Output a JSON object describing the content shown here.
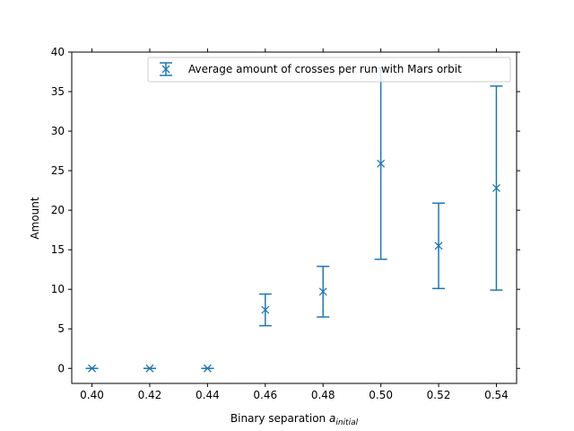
{
  "chart_data": {
    "type": "scatter",
    "title": "",
    "xlabel_main": "Binary separation ",
    "xlabel_var": "a",
    "xlabel_sub": "initial",
    "ylabel": "Amount",
    "xlim": [
      0.393,
      0.547
    ],
    "ylim": [
      -1.9,
      40
    ],
    "xticks": [
      0.4,
      0.42,
      0.44,
      0.46,
      0.48,
      0.5,
      0.52,
      0.54
    ],
    "xtick_labels": [
      "0.40",
      "0.42",
      "0.44",
      "0.46",
      "0.48",
      "0.50",
      "0.52",
      "0.54"
    ],
    "yticks": [
      0,
      5,
      10,
      15,
      20,
      25,
      30,
      35,
      40
    ],
    "ytick_labels": [
      "0",
      "5",
      "10",
      "15",
      "20",
      "25",
      "30",
      "35",
      "40"
    ],
    "grid": false,
    "legend_position": "top-right",
    "series": [
      {
        "name": "Average amount of crosses per run with Mars orbit",
        "color": "#1f77b4",
        "marker": "x",
        "error_bars": true,
        "x": [
          0.4,
          0.42,
          0.44,
          0.46,
          0.48,
          0.5,
          0.52,
          0.54
        ],
        "y": [
          0,
          0,
          0,
          7.4,
          9.7,
          25.9,
          15.5,
          22.8
        ],
        "yerr_low": [
          0,
          0,
          0,
          5.4,
          6.5,
          13.8,
          10.1,
          9.9
        ],
        "yerr_high": [
          0,
          0,
          0,
          9.4,
          12.9,
          38.0,
          20.9,
          35.7
        ]
      }
    ]
  }
}
